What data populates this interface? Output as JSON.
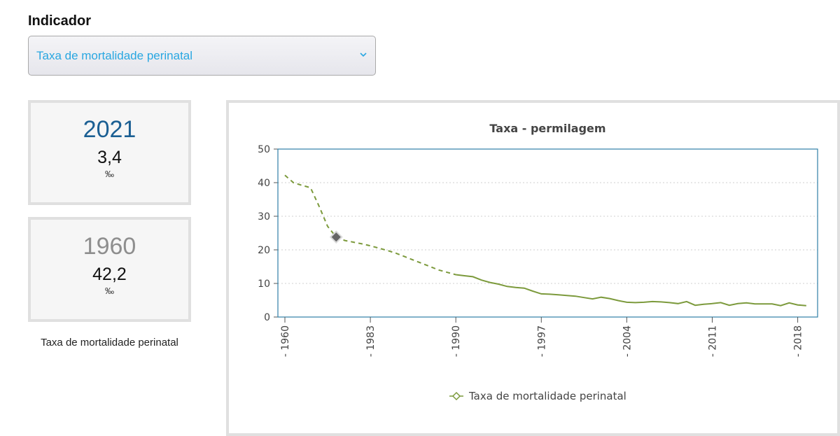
{
  "indicator": {
    "label": "Indicador",
    "selected": "Taxa de mortalidade perinatal"
  },
  "cards": [
    {
      "year": "2021",
      "value": "3,4",
      "unit": "‰"
    },
    {
      "year": "1960",
      "value": "42,2",
      "unit": "‰"
    }
  ],
  "caption": "Taxa de mortalidade perinatal",
  "icons": {
    "select": "chevron-down-icon",
    "legend": "diamond-marker-icon",
    "highlight": "diamond-marker-icon"
  },
  "colors": {
    "accent": "#29a7e1",
    "year_current": "#1b5f93",
    "year_past": "#8e8e8e",
    "series": "#7c9a3c",
    "plot_border": "#2f7fa6",
    "highlight_marker": "#666666"
  },
  "chart_data": {
    "type": "line",
    "title": "Taxa - permilagem",
    "xlabel": "",
    "ylabel": "",
    "ylim": [
      0,
      50
    ],
    "yticks": [
      0,
      10,
      20,
      30,
      40,
      50
    ],
    "xlim": [
      1960,
      2021
    ],
    "xticks": [
      {
        "label": "1960",
        "x": 1960
      },
      {
        "label": "1983",
        "x": 1970
      },
      {
        "label": "1990",
        "x": 1980
      },
      {
        "label": "1997",
        "x": 1990
      },
      {
        "label": "2004",
        "x": 2000
      },
      {
        "label": "2011",
        "x": 2010
      },
      {
        "label": "2018",
        "x": 2020
      }
    ],
    "grid": true,
    "legend": "bottom",
    "highlight_point": {
      "x": 1966,
      "y": 23.8
    },
    "series": [
      {
        "name": "Taxa de mortalidade perinatal",
        "dashed_segments": [
          {
            "x": [
              1960,
              1961,
              1962,
              1963,
              1964,
              1965,
              1966
            ],
            "y": [
              42.2,
              40,
              39.2,
              38.5,
              33,
              27,
              23.8
            ]
          },
          {
            "x": [
              1966,
              1967,
              1968,
              1969,
              1970,
              1971,
              1972,
              1973,
              1974,
              1975,
              1976,
              1977,
              1978,
              1979,
              1980
            ],
            "y": [
              23.8,
              22.8,
              22.3,
              21.8,
              21.2,
              20.5,
              19.8,
              19,
              18,
              17,
              16,
              15,
              14,
              13.3,
              12.6
            ]
          }
        ],
        "solid_segment": {
          "x": [
            1980,
            1981,
            1982,
            1983,
            1984,
            1985,
            1986,
            1987,
            1988,
            1989,
            1990,
            1991,
            1992,
            1993,
            1994,
            1995,
            1996,
            1997,
            1998,
            1999,
            2000,
            2001,
            2002,
            2003,
            2004,
            2005,
            2006,
            2007,
            2008,
            2009,
            2010,
            2011,
            2012,
            2013,
            2014,
            2015,
            2016,
            2017,
            2018,
            2019,
            2020,
            2021
          ],
          "y": [
            12.6,
            12.3,
            12.0,
            11.0,
            10.3,
            9.8,
            9.1,
            8.8,
            8.6,
            7.7,
            6.9,
            6.8,
            6.6,
            6.4,
            6.2,
            5.8,
            5.4,
            5.9,
            5.5,
            4.9,
            4.4,
            4.3,
            4.4,
            4.6,
            4.5,
            4.3,
            4.0,
            4.6,
            3.5,
            3.8,
            4.0,
            4.3,
            3.5,
            4.0,
            4.2,
            3.9,
            3.9,
            3.9,
            3.4,
            4.2,
            3.6,
            3.4
          ]
        }
      }
    ]
  }
}
